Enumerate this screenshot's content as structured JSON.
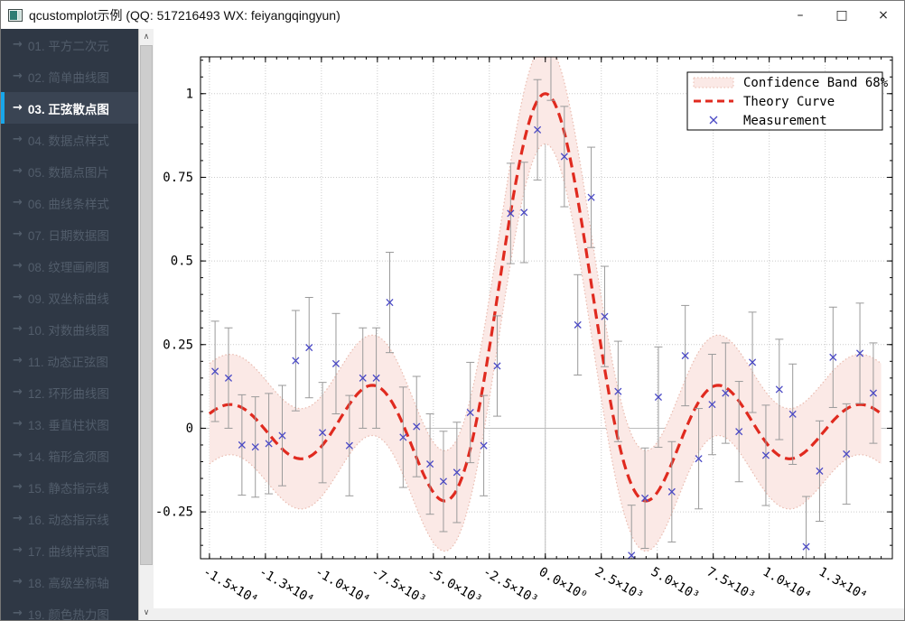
{
  "window": {
    "title": "qcustomplot示例 (QQ: 517216493 WX: feiyangqingyun)",
    "controls": {
      "minimize": "–",
      "maximize": "□",
      "close": "×"
    }
  },
  "theme": {
    "sidebar_bg": "#2f3845",
    "item_color": "#525d6b",
    "active_bg": "#3a4453",
    "active_color": "#ffffff",
    "accent": "#18a6ea"
  },
  "sidebar": {
    "items": [
      {
        "id": "01",
        "label": "01. 平方二次元",
        "active": false
      },
      {
        "id": "02",
        "label": "02. 简单曲线图",
        "active": false
      },
      {
        "id": "03",
        "label": "03. 正弦散点图",
        "active": true
      },
      {
        "id": "04",
        "label": "04. 数据点样式",
        "active": false
      },
      {
        "id": "05",
        "label": "05. 数据点图片",
        "active": false
      },
      {
        "id": "06",
        "label": "06. 曲线条样式",
        "active": false
      },
      {
        "id": "07",
        "label": "07. 日期数据图",
        "active": false
      },
      {
        "id": "08",
        "label": "08. 纹理画刷图",
        "active": false
      },
      {
        "id": "09",
        "label": "09. 双坐标曲线",
        "active": false
      },
      {
        "id": "10",
        "label": "10. 对数曲线图",
        "active": false
      },
      {
        "id": "11",
        "label": "11. 动态正弦图",
        "active": false
      },
      {
        "id": "12",
        "label": "12. 环形曲线图",
        "active": false
      },
      {
        "id": "13",
        "label": "13. 垂直柱状图",
        "active": false
      },
      {
        "id": "14",
        "label": "14. 箱形盒须图",
        "active": false
      },
      {
        "id": "15",
        "label": "15. 静态指示线",
        "active": false
      },
      {
        "id": "16",
        "label": "16. 动态指示线",
        "active": false
      },
      {
        "id": "17",
        "label": "17. 曲线样式图",
        "active": false
      },
      {
        "id": "18",
        "label": "18. 高级坐标轴",
        "active": false
      },
      {
        "id": "19",
        "label": "19. 颜色热力图",
        "active": false
      }
    ]
  },
  "chart_data": {
    "type": "line",
    "title": "",
    "xlabel": "",
    "ylabel": "",
    "x_range": [
      -15400,
      15500
    ],
    "y_range": [
      -0.39,
      1.11
    ],
    "grid": true,
    "x_ticks": {
      "values": [
        -15000,
        -12500,
        -10000,
        -7500,
        -5000,
        -2500,
        0,
        2500,
        5000,
        7500,
        10000,
        12500
      ],
      "labels": [
        "-1.5×10⁴",
        "-1.3×10⁴",
        "-1.0×10⁴",
        "-7.5×10³",
        "-5.0×10³",
        "-2.5×10³",
        "0.0×10⁰",
        "2.5×10³",
        "5.0×10³",
        "7.5×10³",
        "1.0×10⁴",
        "1.3×10⁴"
      ],
      "minor_step": 500,
      "rotation": 30
    },
    "y_ticks": {
      "values": [
        1,
        0.75,
        0.5,
        0.25,
        0,
        -0.25
      ],
      "labels": [
        "1",
        "0.75",
        "0.5",
        "0.25",
        "0",
        "-0.25"
      ],
      "minor_step": 0.05
    },
    "colors": {
      "grid": "#cbcbcb",
      "zero_line": "#bdbdbd",
      "frame": "#000000",
      "error": "#9a9a9a"
    },
    "theory_curve": {
      "name": "Theory Curve",
      "formula": "y = sin(x/1000)/(x/1000)",
      "x_scale": 1000,
      "x_min": -15000,
      "x_max": 15000,
      "samples": 400,
      "color": "#e02a1f",
      "style": "dashed"
    },
    "confidence_band": {
      "name": "Confidence Band 68%",
      "offset": 0.15,
      "fill": "#fbe9e6",
      "edge": "#e9bbaf"
    },
    "measurement": {
      "name": "Measurement",
      "marker": "x",
      "color": "#4a49c5",
      "error_bar": 0.15,
      "points": [
        [
          -14750,
          0.17
        ],
        [
          -14150,
          0.15
        ],
        [
          -13550,
          -0.05
        ],
        [
          -12950,
          -0.056
        ],
        [
          -12350,
          -0.046
        ],
        [
          -11750,
          -0.022
        ],
        [
          -11150,
          0.202
        ],
        [
          -10550,
          0.241
        ],
        [
          -9950,
          -0.013
        ],
        [
          -9350,
          0.193
        ],
        [
          -8750,
          -0.052
        ],
        [
          -8150,
          0.15
        ],
        [
          -7550,
          0.15
        ],
        [
          -6950,
          0.376
        ],
        [
          -6350,
          -0.027
        ],
        [
          -5750,
          0.005
        ],
        [
          -5150,
          -0.107
        ],
        [
          -4550,
          -0.159
        ],
        [
          -3950,
          -0.132
        ],
        [
          -3350,
          0.047
        ],
        [
          -2750,
          -0.052
        ],
        [
          -2150,
          0.186
        ],
        [
          -1550,
          0.642
        ],
        [
          -950,
          0.645
        ],
        [
          -350,
          0.892
        ],
        [
          250,
          1.13
        ],
        [
          850,
          0.812
        ],
        [
          1450,
          0.309
        ],
        [
          2050,
          0.69
        ],
        [
          2650,
          0.334
        ],
        [
          3250,
          0.11
        ],
        [
          3850,
          -0.38
        ],
        [
          4450,
          -0.209
        ],
        [
          5050,
          0.093
        ],
        [
          5650,
          -0.19
        ],
        [
          6250,
          0.217
        ],
        [
          6850,
          -0.091
        ],
        [
          7450,
          0.071
        ],
        [
          8050,
          0.105
        ],
        [
          8650,
          -0.01
        ],
        [
          9250,
          0.197
        ],
        [
          9850,
          -0.081
        ],
        [
          10450,
          0.116
        ],
        [
          11050,
          0.042
        ],
        [
          11650,
          -0.354
        ],
        [
          12250,
          -0.128
        ],
        [
          12850,
          0.212
        ],
        [
          13450,
          -0.077
        ],
        [
          14050,
          0.224
        ],
        [
          14650,
          0.105
        ]
      ]
    },
    "legend": {
      "position": "top-right",
      "entries": [
        {
          "label": "Confidence Band 68%",
          "swatch": "band"
        },
        {
          "label": "Theory Curve",
          "swatch": "dashed-line"
        },
        {
          "label": "Measurement",
          "swatch": "x-marker"
        }
      ]
    }
  }
}
